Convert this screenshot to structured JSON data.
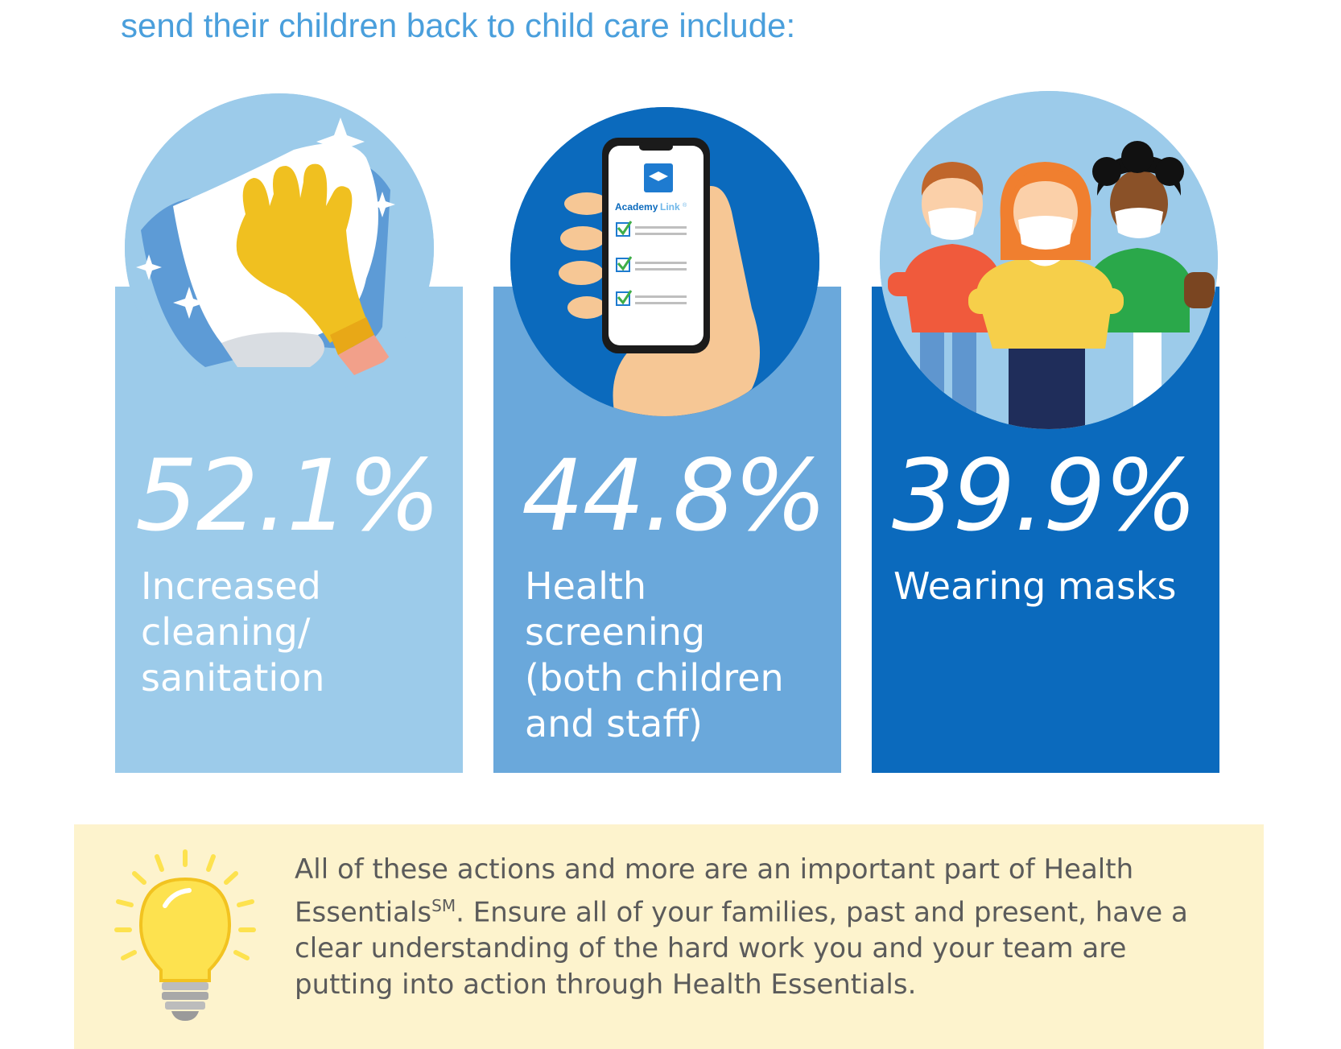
{
  "headline": "send their children back to child care include:",
  "cards": [
    {
      "stat": "52.1%",
      "caption": "Increased cleaning/ sanitation"
    },
    {
      "stat": "44.8%",
      "caption": "Health screening (both children and staff)"
    },
    {
      "stat": "39.9%",
      "caption": "Wearing masks"
    }
  ],
  "phone": {
    "app_name_1": "Academy",
    "app_name_2": "Link",
    "app_mark": "®"
  },
  "tip": {
    "text_part1": "All of these actions and more are an important part of Health Essentials",
    "superscript": "SM",
    "text_part2": ". Ensure all of your families, past and present, have a clear understanding of the hard work you and your team are putting into action through Health Essentials."
  },
  "icons": [
    "cleaning-glove-icon",
    "phone-checklist-icon",
    "masked-children-icon",
    "lightbulb-icon"
  ],
  "colors": {
    "headline": "#4a9fdc",
    "card1": "#9ccbea",
    "card2": "#6aa8db",
    "card3": "#0b6abd",
    "tip_background": "#fdf3cd"
  }
}
